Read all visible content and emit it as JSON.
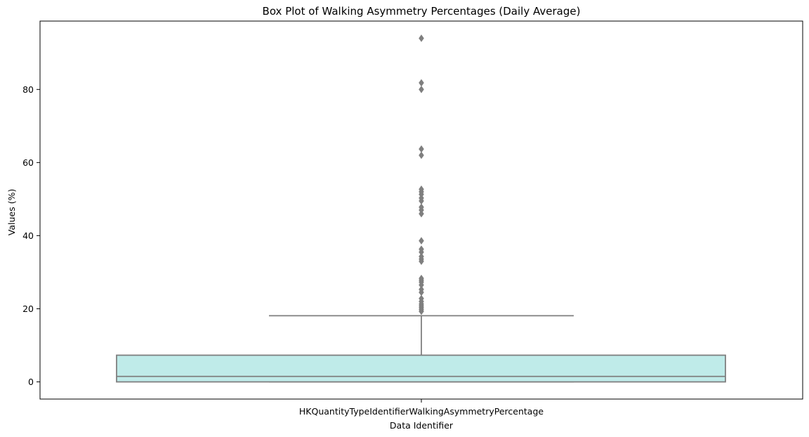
{
  "chart_data": {
    "type": "box",
    "title": "Box Plot of Walking Asymmetry Percentages (Daily Average)",
    "xlabel": "Data Identifier",
    "ylabel": "Values (%)",
    "categories": [
      "HKQuantityTypeIdentifierWalkingAsymmetryPercentage"
    ],
    "ylim": [
      -4.7,
      98.7
    ],
    "yticks": [
      0,
      20,
      40,
      60,
      80
    ],
    "box": {
      "min": 0,
      "q1": 0,
      "median": 1.5,
      "q3": 7.3,
      "whisker_low": 0,
      "whisker_high": 18.1
    },
    "outliers": [
      19.3,
      19.8,
      20.3,
      20.8,
      21.3,
      22.0,
      22.8,
      24.5,
      25.3,
      26.5,
      27.3,
      27.8,
      28.3,
      33.0,
      33.6,
      34.3,
      35.5,
      36.3,
      38.6,
      46.0,
      47.0,
      47.8,
      49.5,
      50.3,
      51.3,
      52.0,
      52.7,
      62.0,
      63.7,
      80.0,
      81.8,
      94.0
    ],
    "colors": {
      "box_fill": "#bfebe9",
      "line": "#7f7f7f"
    }
  }
}
